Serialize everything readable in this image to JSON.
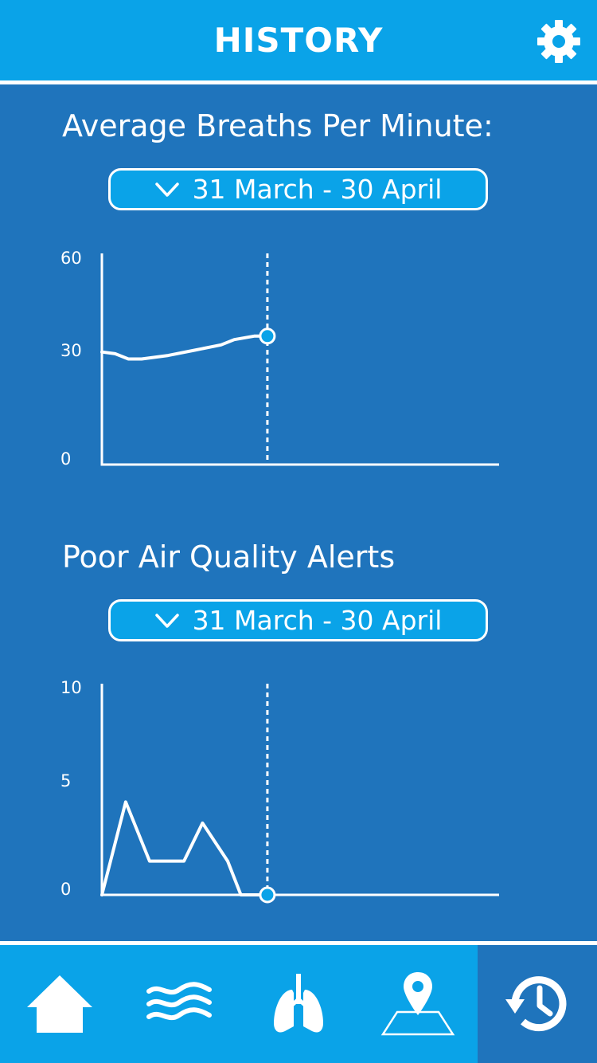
{
  "header": {
    "title": "HISTORY",
    "settings_icon": "gear-icon"
  },
  "colors": {
    "header_bg": "#0aa3e8",
    "page_bg": "#1f74bc",
    "text": "#ffffff",
    "marker_fill": "#0aa3e8"
  },
  "breaths_section": {
    "title": "Average Breaths Per Minute:",
    "range_label": "31 March - 30 April",
    "range_icon": "chevron-down-icon"
  },
  "alerts_section": {
    "title": "Poor Air Quality Alerts",
    "range_label": "31 March - 30 April",
    "range_icon": "chevron-down-icon"
  },
  "chart_data": [
    {
      "type": "line",
      "title": "",
      "xlabel": "",
      "ylabel": "",
      "ylim": [
        0,
        60
      ],
      "yticks": [
        "0",
        "30",
        "60"
      ],
      "xlim": [
        0,
        30
      ],
      "x": [
        0,
        1,
        2,
        3,
        5,
        7,
        9,
        10,
        11.5,
        12,
        12.5
      ],
      "y": [
        32,
        31.5,
        30,
        30,
        31,
        32.5,
        34,
        35.5,
        36.5,
        36.5,
        36.5
      ],
      "marker": {
        "x": 12.5,
        "y": 36.5
      },
      "cursor_x": 12.5,
      "grid": false
    },
    {
      "type": "line",
      "title": "",
      "xlabel": "",
      "ylabel": "",
      "ylim": [
        0,
        10
      ],
      "yticks": [
        "0",
        "5",
        "10"
      ],
      "xlim": [
        0,
        30
      ],
      "x": [
        0,
        1.8,
        3.6,
        6.2,
        7.6,
        9.5,
        10.5,
        12.5
      ],
      "y": [
        0,
        4.4,
        1.6,
        1.6,
        3.4,
        1.6,
        0,
        0
      ],
      "marker": {
        "x": 12.5,
        "y": 0
      },
      "cursor_x": 12.5,
      "grid": false
    }
  ],
  "tabbar": {
    "tabs": [
      {
        "name": "home",
        "icon": "home-icon"
      },
      {
        "name": "air",
        "icon": "waves-icon"
      },
      {
        "name": "breathing",
        "icon": "lungs-icon"
      },
      {
        "name": "map",
        "icon": "map-pin-icon"
      },
      {
        "name": "history",
        "icon": "history-icon",
        "active": true
      }
    ]
  }
}
